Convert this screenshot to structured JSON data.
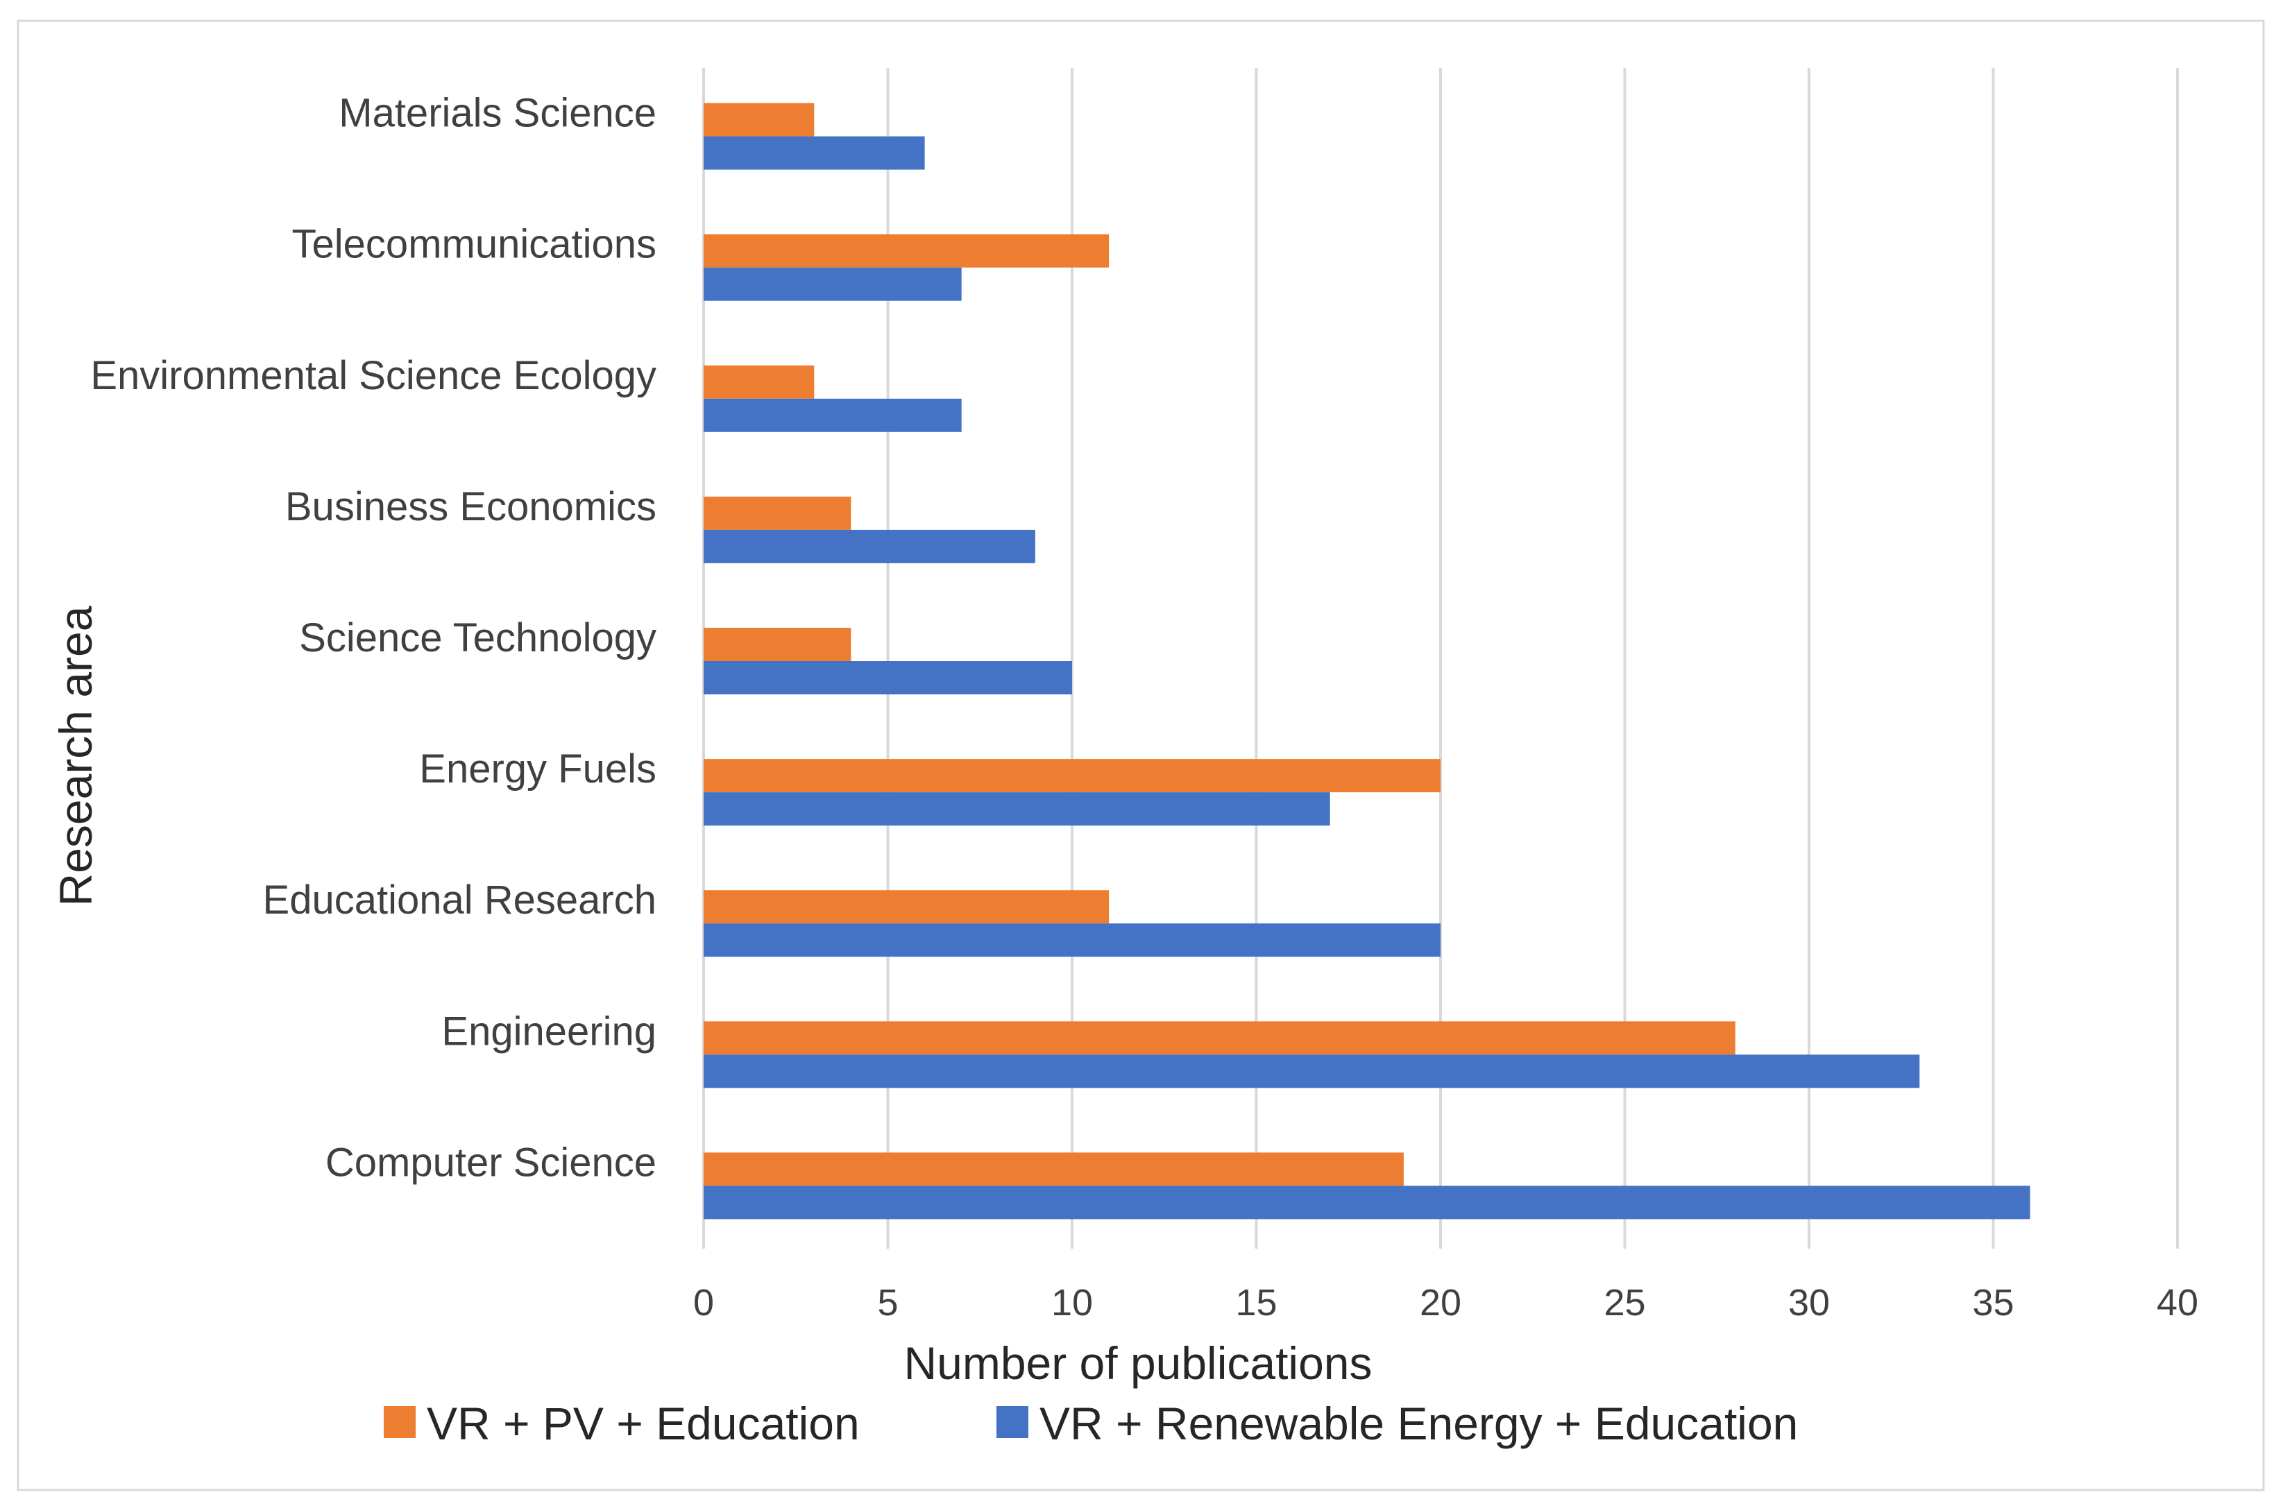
{
  "colors": {
    "series_pv": "#ED7D31",
    "series_re": "#4472C4",
    "grid": "#d9d9d9",
    "text": "#404040"
  },
  "chart_data": {
    "type": "bar",
    "orientation": "horizontal",
    "categories": [
      "Materials Science",
      "Telecommunications",
      "Environmental Science Ecology",
      "Business Economics",
      "Science Technology",
      "Energy Fuels",
      "Educational Research",
      "Engineering",
      "Computer Science"
    ],
    "series": [
      {
        "name": "VR + PV + Education",
        "color": "#ED7D31",
        "values": [
          3,
          11,
          3,
          4,
          4,
          20,
          11,
          28,
          19
        ]
      },
      {
        "name": "VR + Renewable Energy + Education",
        "color": "#4472C4",
        "values": [
          6,
          7,
          7,
          9,
          10,
          17,
          20,
          33,
          36
        ]
      }
    ],
    "xlabel": "Number of publications",
    "ylabel": "Research area",
    "xlim": [
      0,
      40
    ],
    "xticks": [
      "0",
      "5",
      "10",
      "15",
      "20",
      "25",
      "30",
      "35",
      "40"
    ],
    "grid": "vertical",
    "legend": "bottom"
  }
}
